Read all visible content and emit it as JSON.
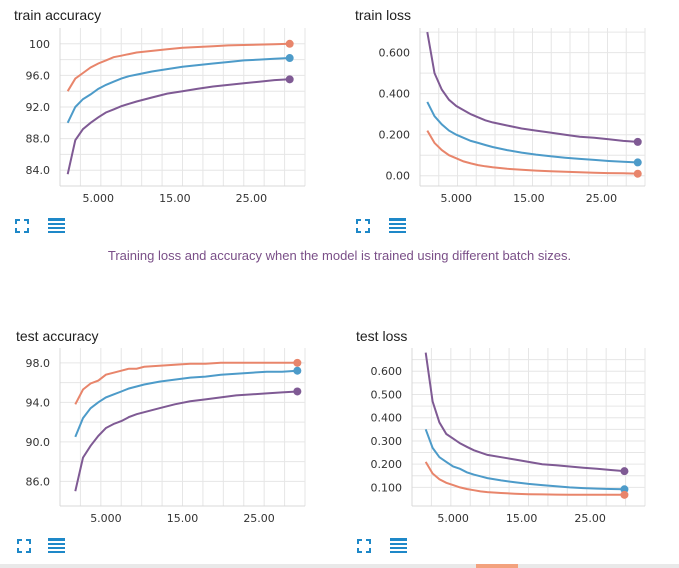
{
  "caption": "Training loss and accuracy when the model is trained using different batch sizes.",
  "colors": {
    "orange": "#e8856b",
    "blue": "#4d9bc9",
    "purple": "#7f5a94"
  },
  "panels": [
    {
      "id": "train-accuracy",
      "title": "train accuracy",
      "chart_data": {
        "type": "line",
        "title": "train accuracy",
        "x_ticks": [
          "5.000",
          "15.00",
          "25.00"
        ],
        "xlim": [
          0,
          32
        ],
        "x_tick_values": [
          5,
          15,
          25
        ],
        "y_ticks": [
          "84.0",
          "88.0",
          "92.0",
          "96.0",
          "100"
        ],
        "y_tick_values": [
          84,
          88,
          92,
          96,
          100
        ],
        "ylim": [
          82,
          102
        ],
        "series": [
          {
            "name": "orange",
            "color": "#e8856b",
            "x": [
              1,
              2,
              3,
              4,
              5,
              6,
              7,
              8,
              9,
              10,
              12,
              14,
              16,
              18,
              20,
              22,
              24,
              26,
              28,
              30
            ],
            "y": [
              94.0,
              95.6,
              96.3,
              97.0,
              97.5,
              97.9,
              98.3,
              98.5,
              98.7,
              98.9,
              99.1,
              99.3,
              99.5,
              99.6,
              99.7,
              99.8,
              99.85,
              99.9,
              99.95,
              100.0
            ]
          },
          {
            "name": "blue",
            "color": "#4d9bc9",
            "x": [
              1,
              2,
              3,
              4,
              5,
              6,
              7,
              8,
              9,
              10,
              12,
              14,
              16,
              18,
              20,
              22,
              24,
              26,
              28,
              30
            ],
            "y": [
              90.0,
              92.0,
              93.0,
              93.6,
              94.3,
              94.8,
              95.2,
              95.6,
              95.9,
              96.1,
              96.5,
              96.8,
              97.1,
              97.3,
              97.5,
              97.7,
              97.9,
              98.0,
              98.1,
              98.2
            ]
          },
          {
            "name": "purple",
            "color": "#7f5a94",
            "x": [
              1,
              2,
              3,
              4,
              5,
              6,
              7,
              8,
              9,
              10,
              12,
              14,
              16,
              18,
              20,
              22,
              24,
              26,
              28,
              30
            ],
            "y": [
              83.5,
              87.8,
              89.2,
              90.0,
              90.7,
              91.3,
              91.7,
              92.1,
              92.4,
              92.7,
              93.2,
              93.7,
              94.0,
              94.3,
              94.6,
              94.8,
              95.0,
              95.2,
              95.4,
              95.5
            ]
          }
        ]
      }
    },
    {
      "id": "train-loss",
      "title": "train loss",
      "chart_data": {
        "type": "line",
        "title": "train loss",
        "x_ticks": [
          "5.000",
          "15.00",
          "25.00"
        ],
        "xlim": [
          0,
          31
        ],
        "x_tick_values": [
          5,
          15,
          25
        ],
        "y_ticks": [
          "0.00",
          "0.200",
          "0.400",
          "0.600"
        ],
        "y_tick_values": [
          0,
          0.2,
          0.4,
          0.6
        ],
        "ylim": [
          -0.05,
          0.72
        ],
        "series": [
          {
            "name": "purple",
            "color": "#7f5a94",
            "x": [
              1,
              2,
              3,
              4,
              5,
              6,
              7,
              8,
              9,
              10,
              12,
              14,
              16,
              18,
              20,
              22,
              24,
              26,
              28,
              30
            ],
            "y": [
              0.7,
              0.5,
              0.42,
              0.37,
              0.34,
              0.32,
              0.3,
              0.285,
              0.27,
              0.26,
              0.245,
              0.23,
              0.22,
              0.21,
              0.2,
              0.19,
              0.185,
              0.178,
              0.17,
              0.165
            ]
          },
          {
            "name": "blue",
            "color": "#4d9bc9",
            "x": [
              1,
              2,
              3,
              4,
              5,
              6,
              7,
              8,
              9,
              10,
              12,
              14,
              16,
              18,
              20,
              22,
              24,
              26,
              28,
              30
            ],
            "y": [
              0.36,
              0.29,
              0.25,
              0.22,
              0.2,
              0.185,
              0.17,
              0.16,
              0.15,
              0.14,
              0.125,
              0.113,
              0.103,
              0.095,
              0.088,
              0.082,
              0.077,
              0.072,
              0.068,
              0.065
            ]
          },
          {
            "name": "orange",
            "color": "#e8856b",
            "x": [
              1,
              2,
              3,
              4,
              5,
              6,
              7,
              8,
              9,
              10,
              12,
              14,
              16,
              18,
              20,
              22,
              24,
              26,
              28,
              30
            ],
            "y": [
              0.22,
              0.16,
              0.125,
              0.1,
              0.085,
              0.07,
              0.06,
              0.052,
              0.046,
              0.041,
              0.034,
              0.029,
              0.025,
              0.022,
              0.019,
              0.017,
              0.015,
              0.013,
              0.012,
              0.01
            ]
          }
        ]
      }
    },
    {
      "id": "test-accuracy",
      "title": "test accuracy",
      "chart_data": {
        "type": "line",
        "title": "test accuracy",
        "x_ticks": [
          "5.000",
          "15.00",
          "25.00"
        ],
        "xlim": [
          -1,
          31
        ],
        "x_tick_values": [
          5,
          15,
          25
        ],
        "y_ticks": [
          "86.0",
          "90.0",
          "94.0",
          "98.0"
        ],
        "y_tick_values": [
          86,
          90,
          94,
          98
        ],
        "ylim": [
          83.5,
          99.5
        ],
        "series": [
          {
            "name": "orange",
            "color": "#e8856b",
            "x": [
              1,
              2,
              3,
              4,
              5,
              6,
              7,
              8,
              9,
              10,
              12,
              14,
              16,
              18,
              20,
              22,
              24,
              26,
              28,
              30
            ],
            "y": [
              93.8,
              95.3,
              95.9,
              96.2,
              96.8,
              97.0,
              97.2,
              97.4,
              97.4,
              97.6,
              97.7,
              97.8,
              97.9,
              97.9,
              98.0,
              98.0,
              98.0,
              98.0,
              98.0,
              98.0
            ]
          },
          {
            "name": "blue",
            "color": "#4d9bc9",
            "x": [
              1,
              2,
              3,
              4,
              5,
              6,
              7,
              8,
              9,
              10,
              12,
              14,
              16,
              18,
              20,
              22,
              24,
              26,
              28,
              30
            ],
            "y": [
              90.5,
              92.4,
              93.4,
              94.0,
              94.5,
              94.8,
              95.1,
              95.4,
              95.6,
              95.8,
              96.1,
              96.3,
              96.5,
              96.6,
              96.8,
              96.9,
              97.0,
              97.1,
              97.1,
              97.2
            ]
          },
          {
            "name": "purple",
            "color": "#7f5a94",
            "x": [
              1,
              2,
              3,
              4,
              5,
              6,
              7,
              8,
              9,
              10,
              12,
              14,
              16,
              18,
              20,
              22,
              24,
              26,
              28,
              30
            ],
            "y": [
              85.0,
              88.4,
              89.6,
              90.6,
              91.4,
              91.8,
              92.1,
              92.5,
              92.8,
              93.0,
              93.4,
              93.8,
              94.1,
              94.3,
              94.5,
              94.7,
              94.8,
              94.9,
              95.0,
              95.1
            ]
          }
        ]
      }
    },
    {
      "id": "test-loss",
      "title": "test loss",
      "chart_data": {
        "type": "line",
        "title": "test loss",
        "x_ticks": [
          "5.000",
          "15.00",
          "25.00"
        ],
        "xlim": [
          -1,
          33
        ],
        "x_tick_values": [
          5,
          15,
          25
        ],
        "y_ticks": [
          "0.100",
          "0.200",
          "0.300",
          "0.400",
          "0.500",
          "0.600"
        ],
        "y_tick_values": [
          0.1,
          0.2,
          0.3,
          0.4,
          0.5,
          0.6
        ],
        "ylim": [
          0.02,
          0.7
        ],
        "series": [
          {
            "name": "purple",
            "color": "#7f5a94",
            "x": [
              1,
              2,
              3,
              4,
              5,
              6,
              7,
              8,
              9,
              10,
              12,
              14,
              16,
              18,
              20,
              22,
              24,
              26,
              28,
              30
            ],
            "y": [
              0.68,
              0.47,
              0.38,
              0.33,
              0.31,
              0.29,
              0.275,
              0.26,
              0.25,
              0.24,
              0.23,
              0.22,
              0.21,
              0.2,
              0.195,
              0.19,
              0.185,
              0.18,
              0.175,
              0.17
            ]
          },
          {
            "name": "blue",
            "color": "#4d9bc9",
            "x": [
              1,
              2,
              3,
              4,
              5,
              6,
              7,
              8,
              9,
              10,
              12,
              14,
              16,
              18,
              20,
              22,
              24,
              26,
              28,
              30
            ],
            "y": [
              0.35,
              0.27,
              0.23,
              0.21,
              0.19,
              0.18,
              0.165,
              0.155,
              0.148,
              0.14,
              0.13,
              0.122,
              0.115,
              0.11,
              0.105,
              0.1,
              0.097,
              0.095,
              0.093,
              0.092
            ]
          },
          {
            "name": "orange",
            "color": "#e8856b",
            "x": [
              1,
              2,
              3,
              4,
              5,
              6,
              7,
              8,
              9,
              10,
              12,
              14,
              16,
              18,
              20,
              22,
              24,
              26,
              28,
              30
            ],
            "y": [
              0.21,
              0.16,
              0.135,
              0.12,
              0.11,
              0.1,
              0.093,
              0.088,
              0.083,
              0.08,
              0.076,
              0.073,
              0.071,
              0.07,
              0.069,
              0.068,
              0.068,
              0.068,
              0.068,
              0.068
            ]
          }
        ]
      }
    }
  ]
}
